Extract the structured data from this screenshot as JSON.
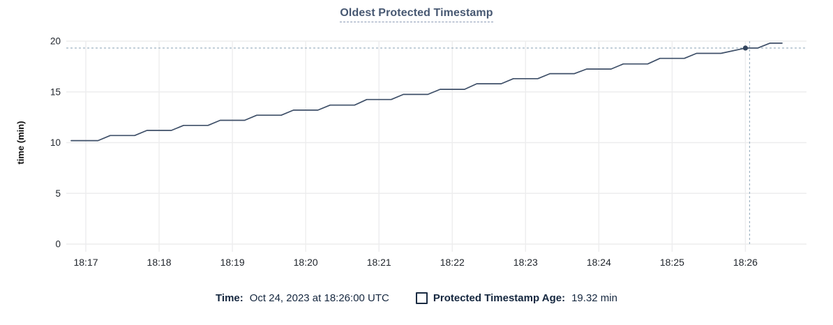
{
  "colors": {
    "series_line": "#3e4f68",
    "highlight_dot": "#33455e",
    "crosshair": "#9fb3c2",
    "grid": "#ededee",
    "tick_text": "#20252c",
    "axis_label_text": "#111111",
    "title_text": "#475872",
    "legend_text": "#15273f"
  },
  "legend": {
    "time_label": "Time:",
    "time_value": "Oct 24, 2023 at 18:26:00 UTC",
    "series_label": "Protected Timestamp Age:",
    "series_value": "19.32 min"
  },
  "chart_data": {
    "type": "line",
    "title": "Oldest Protected Timestamp",
    "xlabel": "",
    "ylabel": "time (min)",
    "ylim": [
      0,
      20
    ],
    "y_ticks": [
      0,
      5,
      10,
      15,
      20
    ],
    "x_ticks": [
      "18:17",
      "18:18",
      "18:19",
      "18:20",
      "18:21",
      "18:22",
      "18:23",
      "18:24",
      "18:25",
      "18:26"
    ],
    "xlim": [
      "18:16:44",
      "18:26:50"
    ],
    "grid": true,
    "legend_position": "bottom",
    "series": [
      {
        "name": "Protected Timestamp Age",
        "unit": "min",
        "points": [
          [
            "18:16:48",
            10.2
          ],
          [
            "18:17:10",
            10.2
          ],
          [
            "18:17:20",
            10.7
          ],
          [
            "18:17:40",
            10.7
          ],
          [
            "18:17:50",
            11.2
          ],
          [
            "18:18:10",
            11.2
          ],
          [
            "18:18:20",
            11.7
          ],
          [
            "18:18:40",
            11.7
          ],
          [
            "18:18:50",
            12.2
          ],
          [
            "18:19:10",
            12.2
          ],
          [
            "18:19:20",
            12.7
          ],
          [
            "18:19:40",
            12.7
          ],
          [
            "18:19:50",
            13.2
          ],
          [
            "18:20:10",
            13.2
          ],
          [
            "18:20:20",
            13.7
          ],
          [
            "18:20:40",
            13.7
          ],
          [
            "18:20:50",
            14.25
          ],
          [
            "18:21:10",
            14.25
          ],
          [
            "18:21:20",
            14.75
          ],
          [
            "18:21:40",
            14.75
          ],
          [
            "18:21:50",
            15.25
          ],
          [
            "18:22:10",
            15.25
          ],
          [
            "18:22:20",
            15.8
          ],
          [
            "18:22:40",
            15.8
          ],
          [
            "18:22:50",
            16.3
          ],
          [
            "18:23:10",
            16.3
          ],
          [
            "18:23:20",
            16.8
          ],
          [
            "18:23:40",
            16.8
          ],
          [
            "18:23:50",
            17.25
          ],
          [
            "18:24:10",
            17.25
          ],
          [
            "18:24:20",
            17.75
          ],
          [
            "18:24:40",
            17.75
          ],
          [
            "18:24:50",
            18.3
          ],
          [
            "18:25:10",
            18.3
          ],
          [
            "18:25:20",
            18.8
          ],
          [
            "18:25:40",
            18.8
          ],
          [
            "18:26:00",
            19.32
          ],
          [
            "18:26:10",
            19.32
          ],
          [
            "18:26:20",
            19.8
          ],
          [
            "18:26:30",
            19.8
          ]
        ]
      }
    ],
    "highlight": {
      "time": "18:26:00",
      "value": 19.32,
      "crosshair": true
    }
  }
}
